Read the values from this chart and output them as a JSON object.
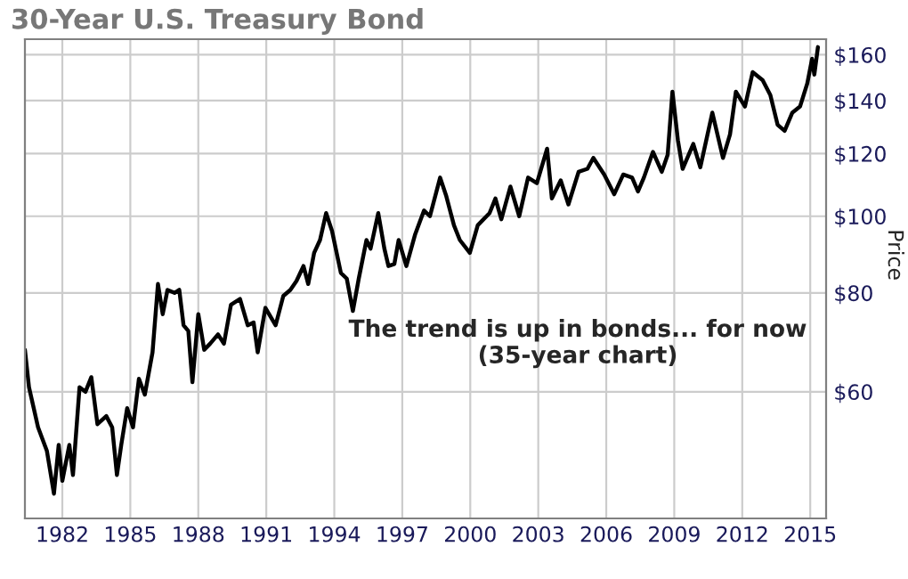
{
  "chart_data": {
    "type": "line",
    "title": "30-Year U.S. Treasury Bond",
    "ylabel": "Price",
    "annotations": [
      "The trend is up in bonds... for now\n(35-year chart)"
    ],
    "log": "y",
    "grid": true,
    "marker": "none",
    "line_style": "solid",
    "xlim": [
      1980.35,
      2015.7
    ],
    "xticks": [
      1982,
      1985,
      1988,
      1991,
      1994,
      1997,
      2000,
      2003,
      2006,
      2009,
      2012,
      2015
    ],
    "ylim": [
      41.5,
      167.4
    ],
    "yticks": [
      {
        "value": 60,
        "label": "$60"
      },
      {
        "value": 80,
        "label": "$80"
      },
      {
        "value": 100,
        "label": "$100"
      },
      {
        "value": 120,
        "label": "$120"
      },
      {
        "value": 140,
        "label": "$140"
      },
      {
        "value": 160,
        "label": "$160"
      }
    ],
    "series": [
      {
        "color": "#000000",
        "x": [
          1980.35,
          1980.53,
          1980.93,
          1981.32,
          1981.63,
          1981.84,
          1982.0,
          1982.31,
          1982.47,
          1982.76,
          1983.02,
          1983.28,
          1983.55,
          1983.94,
          1984.2,
          1984.41,
          1984.6,
          1984.86,
          1985.12,
          1985.38,
          1985.64,
          1985.98,
          1986.22,
          1986.43,
          1986.64,
          1986.95,
          1987.16,
          1987.35,
          1987.56,
          1987.74,
          1988.0,
          1988.26,
          1988.52,
          1988.87,
          1989.13,
          1989.44,
          1989.84,
          1990.18,
          1990.44,
          1990.62,
          1990.96,
          1991.41,
          1991.75,
          1992.06,
          1992.33,
          1992.64,
          1992.85,
          1993.11,
          1993.37,
          1993.64,
          1993.9,
          1994.29,
          1994.55,
          1994.82,
          1995.08,
          1995.42,
          1995.6,
          1995.94,
          1996.21,
          1996.39,
          1996.65,
          1996.84,
          1997.18,
          1997.57,
          1997.96,
          1998.22,
          1998.67,
          1998.93,
          1999.28,
          1999.54,
          1999.98,
          2000.33,
          2000.85,
          2001.11,
          2001.37,
          2001.77,
          2002.16,
          2002.55,
          2002.94,
          2003.39,
          2003.6,
          2003.99,
          2004.33,
          2004.78,
          2005.17,
          2005.43,
          2005.91,
          2006.35,
          2006.75,
          2007.14,
          2007.4,
          2007.66,
          2008.06,
          2008.45,
          2008.71,
          2008.92,
          2009.16,
          2009.37,
          2009.84,
          2010.15,
          2010.68,
          2011.15,
          2011.46,
          2011.72,
          2012.12,
          2012.46,
          2012.9,
          2013.24,
          2013.56,
          2013.87,
          2014.21,
          2014.55,
          2014.87,
          2015.08,
          2015.18,
          2015.34
        ],
        "values": [
          67.8,
          60.8,
          54.1,
          50.5,
          44.6,
          51.4,
          46.3,
          51.4,
          47.1,
          60.8,
          60,
          62.6,
          54.6,
          55.9,
          54.1,
          47.1,
          51.4,
          57.2,
          54.1,
          62.3,
          59.5,
          67.3,
          82.1,
          75.2,
          80.7,
          80,
          80.7,
          72.8,
          71.6,
          61.7,
          75.2,
          67.8,
          69.0,
          70.9,
          69.0,
          77.3,
          78.6,
          72.8,
          73.4,
          67.3,
          76.6,
          72.8,
          79.3,
          80.7,
          82.8,
          86.5,
          82.1,
          89.9,
          93.3,
          100.9,
          95.8,
          84.8,
          83.4,
          75.9,
          83.4,
          93.3,
          91.0,
          100.9,
          91.0,
          86.5,
          87.0,
          93.3,
          86.5,
          94.9,
          101.7,
          100,
          111.9,
          106.3,
          97.4,
          93.3,
          89.9,
          97.4,
          100.9,
          105.3,
          99.1,
          109.0,
          100,
          111.9,
          110.1,
          121.7,
          105.3,
          111.0,
          103.5,
          113.8,
          114.8,
          118.5,
          112.9,
          106.6,
          112.9,
          111.9,
          107.5,
          111.9,
          120.6,
          113.8,
          119.6,
          143.7,
          124.8,
          114.8,
          123.4,
          115.3,
          135.2,
          118.5,
          126.9,
          143.7,
          137.6,
          152.1,
          148.6,
          142.3,
          130.5,
          128.2,
          135.2,
          137.6,
          147.2,
          158.1,
          151.0,
          163.6
        ]
      }
    ]
  }
}
